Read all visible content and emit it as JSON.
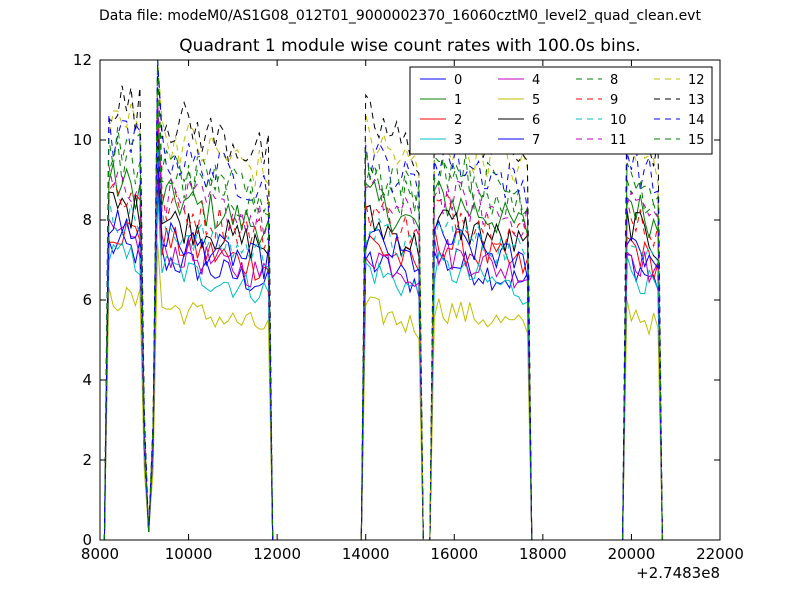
{
  "header": {
    "supertitle": "Data file: modeM0/AS1G08_012T01_9000002370_16060cztM0_level2_quad_clean.evt",
    "title": "Quadrant 1 module wise count rates with 100.0s bins."
  },
  "chart_data": {
    "type": "line",
    "title": "Quadrant 1 module wise count rates with 100.0s bins.",
    "xlabel": "",
    "ylabel": "",
    "x_offset_label": "+2.7483e8",
    "xlim": [
      8000,
      22000
    ],
    "ylim": [
      0,
      12
    ],
    "xticks": [
      8000,
      10000,
      12000,
      14000,
      16000,
      18000,
      20000,
      22000
    ],
    "xtick_labels": [
      "8000",
      "10000",
      "12000",
      "14000",
      "16000",
      "18000",
      "20000",
      "22000"
    ],
    "yticks": [
      0,
      2,
      4,
      6,
      8,
      10,
      12
    ],
    "ytick_labels": [
      "0",
      "2",
      "4",
      "6",
      "8",
      "10",
      "12"
    ],
    "grid": false,
    "legend_position": "top-right",
    "legend_columns": 4,
    "segments": [
      {
        "x_start": 8200,
        "x_end": 11800,
        "dip_x": 9100
      },
      {
        "x_start": 14000,
        "x_end": 15200
      },
      {
        "x_start": 15550,
        "x_end": 17650
      },
      {
        "x_start": 19900,
        "x_end": 20600
      }
    ],
    "series": [
      {
        "name": "0",
        "color": "#0000ff",
        "style": "solid",
        "level": 6.4
      },
      {
        "name": "1",
        "color": "#008000",
        "style": "solid",
        "level": 7.8
      },
      {
        "name": "2",
        "color": "#ff0000",
        "style": "solid",
        "level": 6.8
      },
      {
        "name": "3",
        "color": "#00bfbf",
        "style": "solid",
        "level": 6.2
      },
      {
        "name": "4",
        "color": "#bf00bf",
        "style": "solid",
        "level": 6.6
      },
      {
        "name": "5",
        "color": "#bfbf00",
        "style": "solid",
        "level": 5.3
      },
      {
        "name": "6",
        "color": "#000000",
        "style": "solid",
        "level": 7.3
      },
      {
        "name": "7",
        "color": "#0000ff",
        "style": "solid",
        "level": 6.9
      },
      {
        "name": "8",
        "color": "#008000",
        "style": "dashed",
        "level": 8.3
      },
      {
        "name": "9",
        "color": "#ff0000",
        "style": "dashed",
        "level": 7.6
      },
      {
        "name": "10",
        "color": "#00bfbf",
        "style": "dashed",
        "level": 7.1
      },
      {
        "name": "11",
        "color": "#bf00bf",
        "style": "dashed",
        "level": 7.9
      },
      {
        "name": "12",
        "color": "#bfbf00",
        "style": "dashed",
        "level": 9.2
      },
      {
        "name": "13",
        "color": "#000000",
        "style": "dashed",
        "level": 9.6
      },
      {
        "name": "14",
        "color": "#0000ff",
        "style": "dashed",
        "level": 8.8
      },
      {
        "name": "15",
        "color": "#008000",
        "style": "dashed",
        "level": 8.6
      }
    ]
  }
}
